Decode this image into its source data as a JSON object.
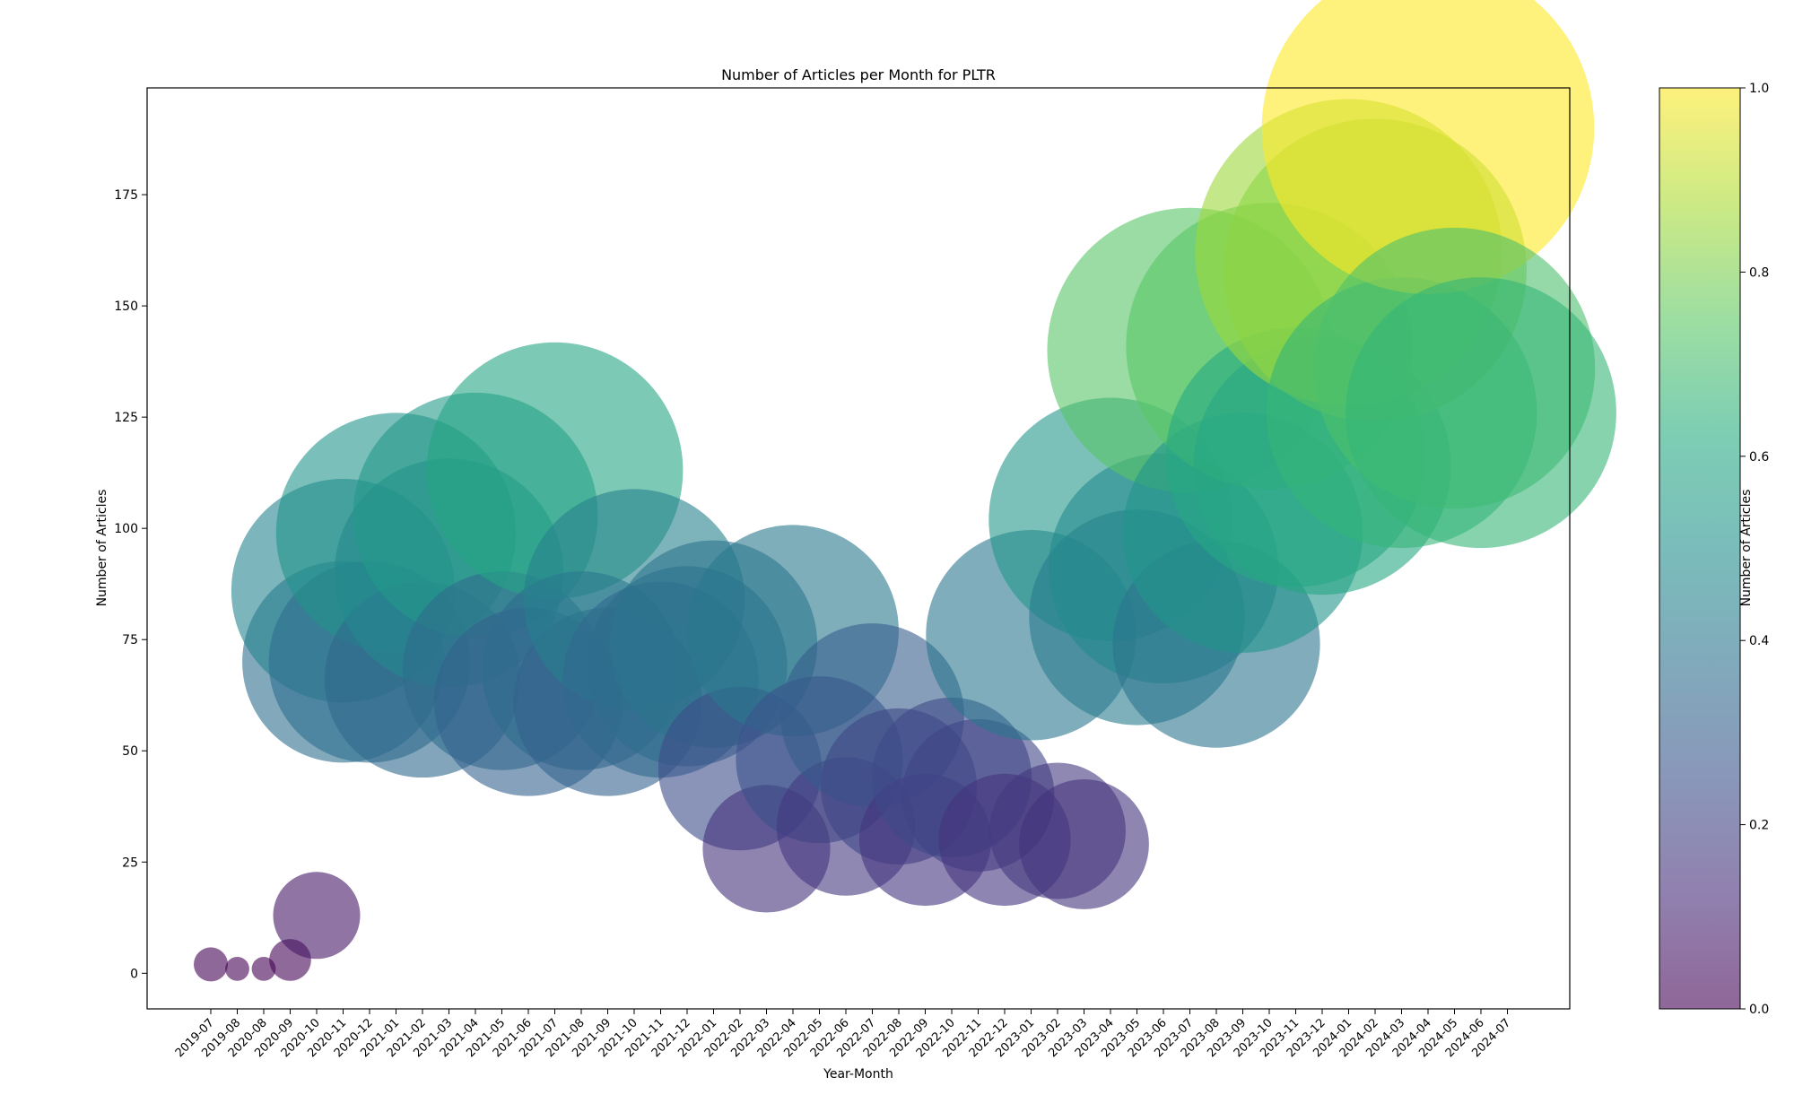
{
  "chart_data": {
    "type": "scatter",
    "title": "Number of Articles per Month for PLTR",
    "xlabel": "Year-Month",
    "ylabel": "Number of Articles",
    "colorbar_label": "Number of Articles",
    "colormap": "viridis",
    "point_alpha": 0.6,
    "ylim": [
      -8,
      199
    ],
    "yticks": [
      0,
      25,
      50,
      75,
      100,
      125,
      150,
      175
    ],
    "colorbar_ticks": [
      "0.0",
      "0.2",
      "0.4",
      "0.6",
      "0.8",
      "1.0"
    ],
    "categories": [
      "2019-07",
      "2019-08",
      "2020-08",
      "2020-09",
      "2020-10",
      "2020-11",
      "2020-12",
      "2021-01",
      "2021-02",
      "2021-03",
      "2021-04",
      "2021-05",
      "2021-06",
      "2021-07",
      "2021-08",
      "2021-09",
      "2021-10",
      "2021-11",
      "2021-12",
      "2022-01",
      "2022-02",
      "2022-03",
      "2022-04",
      "2022-05",
      "2022-06",
      "2022-07",
      "2022-08",
      "2022-09",
      "2022-10",
      "2022-11",
      "2022-12",
      "2023-01",
      "2023-02",
      "2023-03",
      "2023-04",
      "2023-05",
      "2023-06",
      "2023-07",
      "2023-08",
      "2023-09",
      "2023-10",
      "2023-11",
      "2023-12",
      "2024-01",
      "2024-02",
      "2024-03",
      "2024-04",
      "2024-05",
      "2024-06",
      "2024-07"
    ],
    "points": [
      {
        "x": "2019-07",
        "y": 2
      },
      {
        "x": "2019-08",
        "y": 1
      },
      {
        "x": "2020-08",
        "y": 1
      },
      {
        "x": "2020-09",
        "y": 3
      },
      {
        "x": "2020-10",
        "y": 13
      },
      {
        "x": "2020-11",
        "y": 70
      },
      {
        "x": "2020-11",
        "y": 86
      },
      {
        "x": "2020-12",
        "y": 70
      },
      {
        "x": "2021-01",
        "y": 99
      },
      {
        "x": "2021-02",
        "y": 66
      },
      {
        "x": "2021-03",
        "y": 90
      },
      {
        "x": "2021-04",
        "y": 103
      },
      {
        "x": "2021-05",
        "y": 68
      },
      {
        "x": "2021-06",
        "y": 61
      },
      {
        "x": "2021-07",
        "y": 113
      },
      {
        "x": "2021-08",
        "y": 68
      },
      {
        "x": "2021-09",
        "y": 61
      },
      {
        "x": "2021-10",
        "y": 84
      },
      {
        "x": "2021-11",
        "y": 66
      },
      {
        "x": "2021-12",
        "y": 69
      },
      {
        "x": "2022-01",
        "y": 74
      },
      {
        "x": "2022-02",
        "y": 46
      },
      {
        "x": "2022-03",
        "y": 28
      },
      {
        "x": "2022-04",
        "y": 77
      },
      {
        "x": "2022-05",
        "y": 48
      },
      {
        "x": "2022-06",
        "y": 33
      },
      {
        "x": "2022-07",
        "y": 58
      },
      {
        "x": "2022-08",
        "y": 42
      },
      {
        "x": "2022-09",
        "y": 30
      },
      {
        "x": "2022-10",
        "y": 44
      },
      {
        "x": "2022-11",
        "y": 40
      },
      {
        "x": "2022-12",
        "y": 30
      },
      {
        "x": "2023-01",
        "y": 76
      },
      {
        "x": "2023-02",
        "y": 32
      },
      {
        "x": "2023-03",
        "y": 29
      },
      {
        "x": "2023-04",
        "y": 102
      },
      {
        "x": "2023-05",
        "y": 80
      },
      {
        "x": "2023-06",
        "y": 91
      },
      {
        "x": "2023-07",
        "y": 140
      },
      {
        "x": "2023-08",
        "y": 74
      },
      {
        "x": "2023-09",
        "y": 99
      },
      {
        "x": "2023-10",
        "y": 141
      },
      {
        "x": "2023-11",
        "y": 116
      },
      {
        "x": "2023-12",
        "y": 114
      },
      {
        "x": "2024-01",
        "y": 162
      },
      {
        "x": "2024-02",
        "y": 158
      },
      {
        "x": "2024-03",
        "y": 126
      },
      {
        "x": "2024-04",
        "y": 190
      },
      {
        "x": "2024-05",
        "y": 136
      },
      {
        "x": "2024-06",
        "y": 126
      }
    ]
  }
}
